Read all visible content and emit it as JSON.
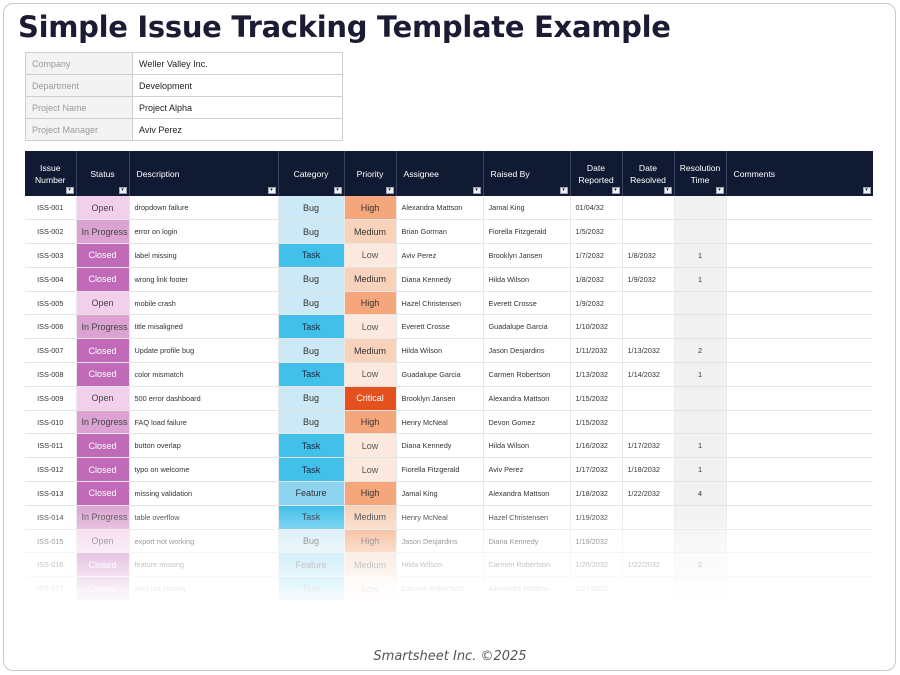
{
  "title": "Simple Issue Tracking Template Example",
  "info": [
    {
      "label": "Company",
      "value": "Weller Valley Inc."
    },
    {
      "label": "Department",
      "value": "Development"
    },
    {
      "label": "Project Name",
      "value": "Project Alpha"
    },
    {
      "label": "Project Manager",
      "value": "Aviv Perez"
    }
  ],
  "columns": {
    "issue_number": "Issue Number",
    "status": "Status",
    "description": "Description",
    "category": "Category",
    "priority": "Priority",
    "assignee": "Assignee",
    "raised_by": "Raised By",
    "date_reported": "Date Reported",
    "date_resolved": "Date Resolved",
    "resolution_time": "Resolution Time",
    "comments": "Comments"
  },
  "dropdown_icon": "▾",
  "rows": [
    {
      "id": "ISS-001",
      "status": "Open",
      "description": "dropdown failure",
      "category": "Bug",
      "priority": "High",
      "assignee": "Alexandra Mattson",
      "raised_by": "Jamal King",
      "reported": "01/04/32",
      "resolved": "",
      "time": "",
      "comments": ""
    },
    {
      "id": "ISS-002",
      "status": "In Progress",
      "description": "error on login",
      "category": "Bug",
      "priority": "Medium",
      "assignee": "Brian Gorman",
      "raised_by": "Fiorella Fitzgerald",
      "reported": "1/5/2032",
      "resolved": "",
      "time": "",
      "comments": ""
    },
    {
      "id": "ISS-003",
      "status": "Closed",
      "description": "label missing",
      "category": "Task",
      "priority": "Low",
      "assignee": "Aviv Perez",
      "raised_by": "Brooklyn Jansen",
      "reported": "1/7/2032",
      "resolved": "1/8/2032",
      "time": "1",
      "comments": ""
    },
    {
      "id": "ISS-004",
      "status": "Closed",
      "description": "wrong link footer",
      "category": "Bug",
      "priority": "Medium",
      "assignee": "Diana Kennedy",
      "raised_by": "Hilda Wilson",
      "reported": "1/8/2032",
      "resolved": "1/9/2032",
      "time": "1",
      "comments": ""
    },
    {
      "id": "ISS-005",
      "status": "Open",
      "description": "mobile crash",
      "category": "Bug",
      "priority": "High",
      "assignee": "Hazel Christensen",
      "raised_by": "Everett Crosse",
      "reported": "1/9/2032",
      "resolved": "",
      "time": "",
      "comments": ""
    },
    {
      "id": "ISS-006",
      "status": "In Progress",
      "description": "title misaligned",
      "category": "Task",
      "priority": "Low",
      "assignee": "Everett Crosse",
      "raised_by": "Guadalupe Garcia",
      "reported": "1/10/2032",
      "resolved": "",
      "time": "",
      "comments": ""
    },
    {
      "id": "ISS-007",
      "status": "Closed",
      "description": "Update profile bug",
      "category": "Bug",
      "priority": "Medium",
      "assignee": "Hilda Wilson",
      "raised_by": "Jason Desjardins",
      "reported": "1/11/2032",
      "resolved": "1/13/2032",
      "time": "2",
      "comments": ""
    },
    {
      "id": "ISS-008",
      "status": "Closed",
      "description": "color mismatch",
      "category": "Task",
      "priority": "Low",
      "assignee": "Guadalupe Garcia",
      "raised_by": "Carmen Robertson",
      "reported": "1/13/2032",
      "resolved": "1/14/2032",
      "time": "1",
      "comments": ""
    },
    {
      "id": "ISS-009",
      "status": "Open",
      "description": "500 error dashboard",
      "category": "Bug",
      "priority": "Critical",
      "assignee": "Brooklyn Jansen",
      "raised_by": "Alexandra Mattson",
      "reported": "1/15/2032",
      "resolved": "",
      "time": "",
      "comments": ""
    },
    {
      "id": "ISS-010",
      "status": "In Progress",
      "description": "FAQ load failure",
      "category": "Bug",
      "priority": "High",
      "assignee": "Henry McNeal",
      "raised_by": "Devon Gomez",
      "reported": "1/15/2032",
      "resolved": "",
      "time": "",
      "comments": ""
    },
    {
      "id": "ISS-011",
      "status": "Closed",
      "description": "button overlap",
      "category": "Task",
      "priority": "Low",
      "assignee": "Diana Kennedy",
      "raised_by": "Hilda Wilson",
      "reported": "1/16/2032",
      "resolved": "1/17/2032",
      "time": "1",
      "comments": ""
    },
    {
      "id": "ISS-012",
      "status": "Closed",
      "description": "typo on welcome",
      "category": "Task",
      "priority": "Low",
      "assignee": "Fiorella Fitzgerald",
      "raised_by": "Aviv Perez",
      "reported": "1/17/2032",
      "resolved": "1/18/2032",
      "time": "1",
      "comments": ""
    },
    {
      "id": "ISS-013",
      "status": "Closed",
      "description": "missing validation",
      "category": "Feature",
      "priority": "High",
      "assignee": "Jamal King",
      "raised_by": "Alexandra Mattson",
      "reported": "1/18/2032",
      "resolved": "1/22/2032",
      "time": "4",
      "comments": ""
    },
    {
      "id": "ISS-014",
      "status": "In Progress",
      "description": "table overflow",
      "category": "Task",
      "priority": "Medium",
      "assignee": "Henry McNeal",
      "raised_by": "Hazel Christensen",
      "reported": "1/19/2032",
      "resolved": "",
      "time": "",
      "comments": ""
    },
    {
      "id": "ISS-015",
      "status": "Open",
      "description": "export not working",
      "category": "Bug",
      "priority": "High",
      "assignee": "Jason Desjardins",
      "raised_by": "Diana Kennedy",
      "reported": "1/19/2032",
      "resolved": "",
      "time": "",
      "comments": ""
    },
    {
      "id": "ISS-016",
      "status": "Closed",
      "description": "feature missing",
      "category": "Feature",
      "priority": "Medium",
      "assignee": "Hilda Wilson",
      "raised_by": "Carmen Robertson",
      "reported": "1/20/2032",
      "resolved": "1/22/2032",
      "time": "2",
      "comments": ""
    },
    {
      "id": "ISS-017",
      "status": "Closed",
      "description": "alert not closing",
      "category": "Task",
      "priority": "Low",
      "assignee": "Carmen Robertson",
      "raised_by": "Alexandra Mattson",
      "reported": "1/21/2032",
      "resolved": "",
      "time": "",
      "comments": ""
    }
  ],
  "footer": "Smartsheet Inc. ©2025"
}
